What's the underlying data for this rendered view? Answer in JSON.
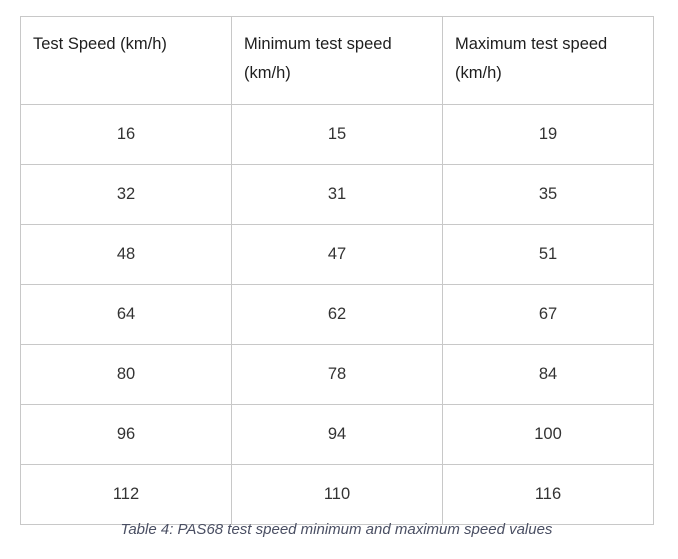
{
  "table": {
    "headers": [
      "Test Speed (km/h)",
      "Minimum test speed (km/h)",
      "Maximum test speed (km/h)"
    ],
    "rows": [
      [
        "16",
        "15",
        "19"
      ],
      [
        "32",
        "31",
        "35"
      ],
      [
        "48",
        "47",
        "51"
      ],
      [
        "64",
        "62",
        "67"
      ],
      [
        "80",
        "78",
        "84"
      ],
      [
        "96",
        "94",
        "100"
      ],
      [
        "112",
        "110",
        "116"
      ]
    ]
  },
  "caption": "Table 4: PAS68 test speed minimum and maximum speed values"
}
